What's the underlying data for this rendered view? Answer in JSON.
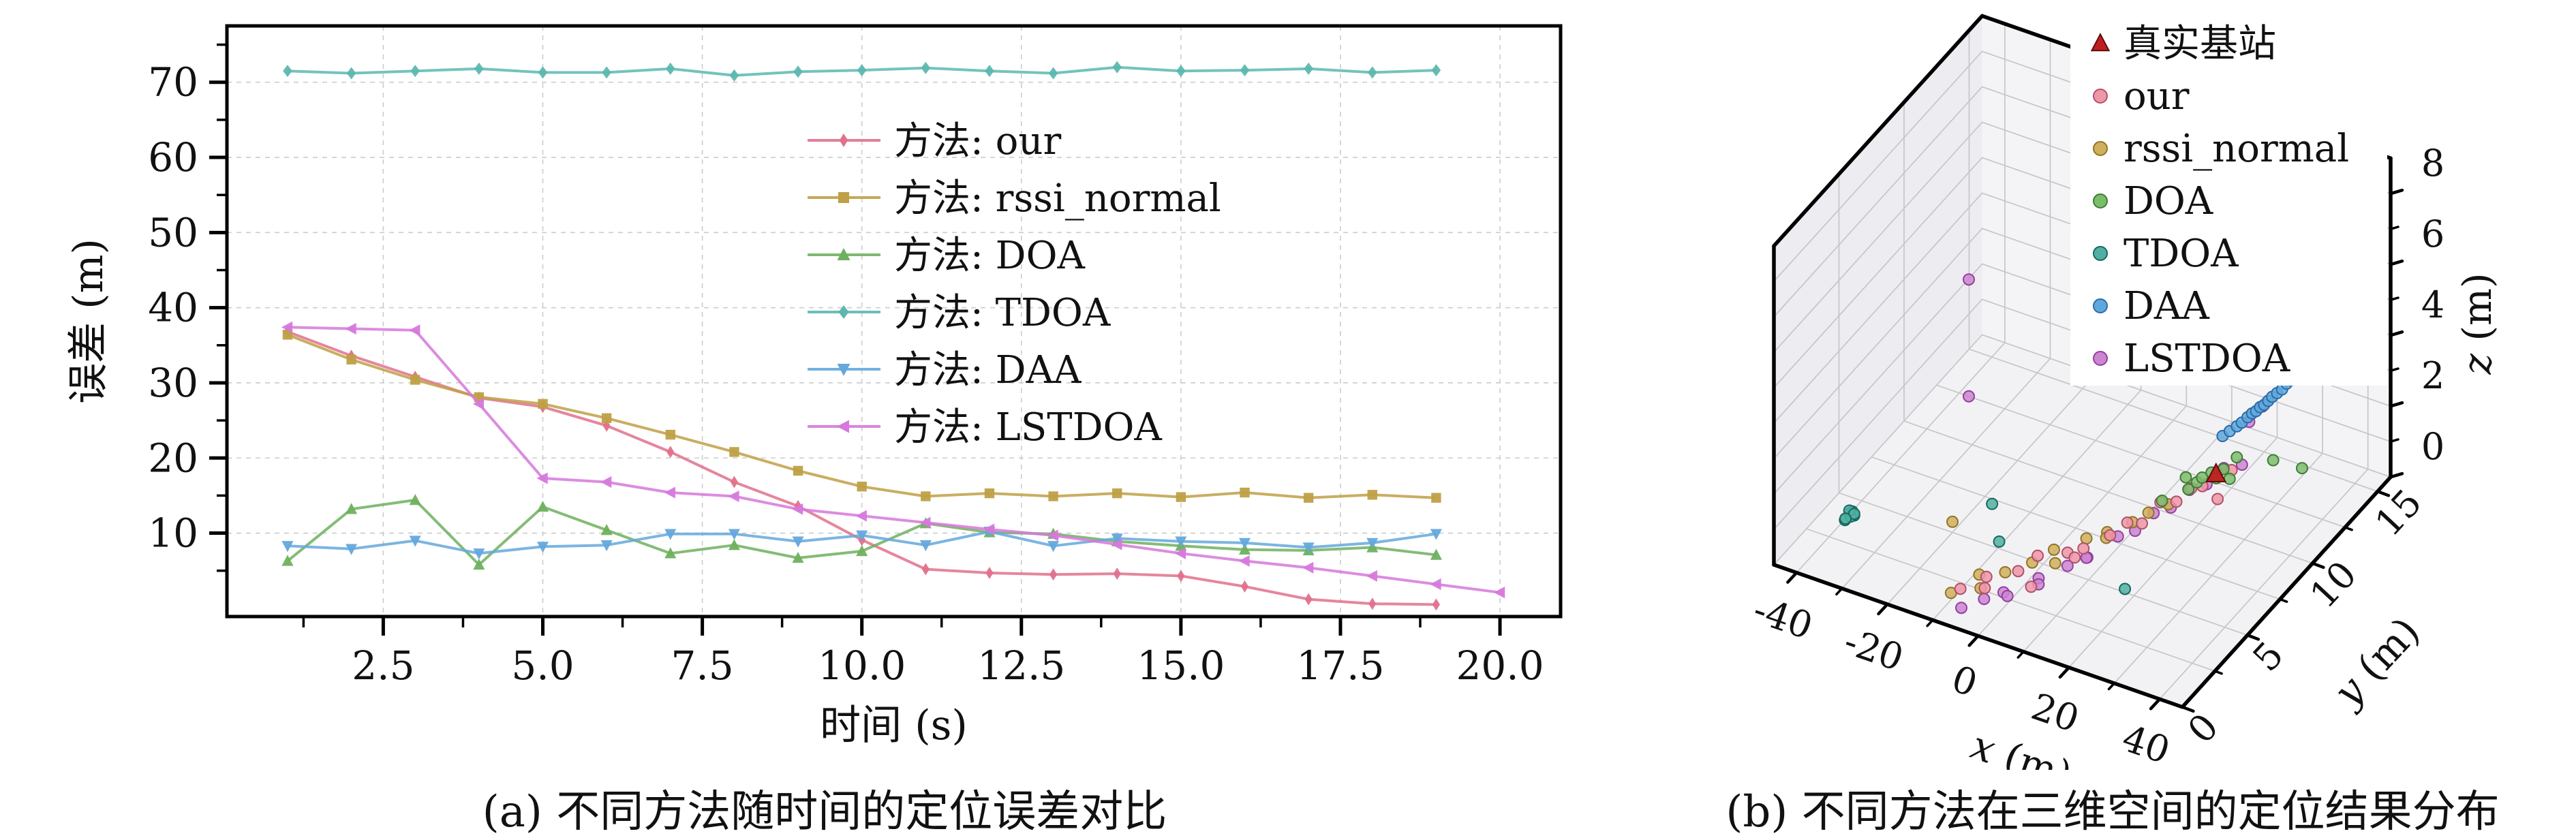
{
  "figure": {
    "background": "#ffffff",
    "caption_a": "(a) 不同方法随时间的定位误差对比",
    "caption_b": "(b) 不同方法在三维空间的定位结果分布"
  },
  "colors": {
    "our": "#e0718c",
    "rssi_normal": "#bfa046",
    "DOA": "#6fb05e",
    "TDOA": "#5cb8ae",
    "DAA": "#64a8dc",
    "LSTDOA": "#d678dc",
    "true_station": "#b32420",
    "grid": "#cccccc",
    "spine": "#000000"
  },
  "chart_data": [
    {
      "type": "line",
      "title": "",
      "xlabel": "时间 (s)",
      "ylabel": "误差 (m)",
      "xlim": [
        0.05,
        20.95
      ],
      "ylim": [
        -1.1,
        77.5
      ],
      "xticks": [
        2.5,
        5.0,
        7.5,
        10.0,
        12.5,
        15.0,
        17.5,
        20.0
      ],
      "yticks": [
        10,
        20,
        30,
        40,
        50,
        60,
        70
      ],
      "xtick_minor_step": 1.25,
      "ytick_minor_step": 5,
      "grid": true,
      "legend_position": "inside upper middle, no frame",
      "series": [
        {
          "name": "方法: our",
          "color": "#e0718c",
          "marker": "thin-diamond",
          "x": [
            1,
            2,
            3,
            4,
            5,
            6,
            7,
            8,
            9,
            10,
            11,
            12,
            13,
            14,
            15,
            16,
            17,
            18,
            19
          ],
          "values": [
            36.8,
            33.6,
            30.8,
            28.0,
            26.8,
            24.3,
            20.8,
            16.8,
            13.6,
            9.1,
            5.2,
            4.7,
            4.5,
            4.6,
            4.3,
            2.9,
            1.2,
            0.6,
            0.5
          ]
        },
        {
          "name": "方法: rssi_normal",
          "color": "#bfa046",
          "marker": "square",
          "x": [
            1,
            2,
            3,
            4,
            5,
            6,
            7,
            8,
            9,
            10,
            11,
            12,
            13,
            14,
            15,
            16,
            17,
            18,
            19
          ],
          "values": [
            36.4,
            33.1,
            30.4,
            28.1,
            27.2,
            25.3,
            23.1,
            20.8,
            18.3,
            16.2,
            14.9,
            15.3,
            14.9,
            15.3,
            14.8,
            15.4,
            14.7,
            15.1,
            14.7
          ]
        },
        {
          "name": "方法: DOA",
          "color": "#6fb05e",
          "marker": "triangle-up",
          "x": [
            1,
            2,
            3,
            4,
            5,
            6,
            7,
            8,
            9,
            10,
            11,
            12,
            13,
            14,
            15,
            16,
            17,
            18,
            19
          ],
          "values": [
            6.3,
            13.2,
            14.4,
            5.8,
            13.5,
            10.4,
            7.3,
            8.4,
            6.7,
            7.6,
            11.3,
            10.1,
            9.9,
            8.9,
            8.3,
            7.8,
            7.7,
            8.1,
            7.1
          ]
        },
        {
          "name": "方法: TDOA",
          "color": "#5cb8ae",
          "marker": "diamond",
          "x": [
            1,
            2,
            3,
            4,
            5,
            6,
            7,
            8,
            9,
            10,
            11,
            12,
            13,
            14,
            15,
            16,
            17,
            18,
            19
          ],
          "values": [
            71.5,
            71.2,
            71.5,
            71.8,
            71.3,
            71.3,
            71.8,
            70.9,
            71.4,
            71.6,
            71.9,
            71.5,
            71.2,
            72.0,
            71.5,
            71.6,
            71.8,
            71.3,
            71.6
          ]
        },
        {
          "name": "方法: DAA",
          "color": "#64a8dc",
          "marker": "triangle-down",
          "x": [
            1,
            2,
            3,
            4,
            5,
            6,
            7,
            8,
            9,
            10,
            11,
            12,
            13,
            14,
            15,
            16,
            17,
            18,
            19
          ],
          "values": [
            8.3,
            7.9,
            9.0,
            7.3,
            8.2,
            8.4,
            9.9,
            9.9,
            8.9,
            9.7,
            8.4,
            10.2,
            8.3,
            9.3,
            8.9,
            8.7,
            8.1,
            8.7,
            9.9
          ]
        },
        {
          "name": "方法: LSTDOA",
          "color": "#d678dc",
          "marker": "triangle-left",
          "x": [
            1,
            2,
            3,
            4,
            5,
            6,
            7,
            8,
            9,
            10,
            11,
            12,
            13,
            14,
            15,
            16,
            17,
            18,
            19,
            20
          ],
          "values": [
            37.4,
            37.2,
            37.0,
            27.2,
            17.3,
            16.8,
            15.4,
            14.9,
            13.2,
            12.3,
            11.4,
            10.5,
            9.7,
            8.5,
            7.3,
            6.3,
            5.4,
            4.3,
            3.2,
            2.1
          ]
        }
      ]
    },
    {
      "type": "scatter",
      "projection": "3d",
      "title": "",
      "xlabel": "x (m)",
      "ylabel": "y (m)",
      "zlabel": "z (m)",
      "xticks": [
        -40,
        -20,
        0,
        20,
        40
      ],
      "yticks": [
        0,
        5,
        10,
        15
      ],
      "zticks": [
        0,
        2,
        4,
        6,
        8
      ],
      "pane_range": {
        "x": [
          -45,
          45
        ],
        "y": [
          0,
          16
        ],
        "z": [
          0,
          9
        ]
      },
      "grid_steps": {
        "x": 10,
        "y": 2.5,
        "z": 1
      },
      "legend_position": "upper center, white box",
      "series": [
        {
          "name": "真实基站",
          "marker": "triangle",
          "fill": "#c01f1f",
          "edge": "#5f0d0d",
          "points": [
            [
              18,
              12,
              0.5
            ]
          ]
        },
        {
          "name": "our",
          "marker": "circle",
          "fill": "#ee97a8",
          "edge": "#b2506a",
          "points": [
            [
              -8.5,
              1.6,
              0.3
            ],
            [
              -6.5,
              2.9,
              0.2
            ],
            [
              -4,
              1.9,
              0.4
            ],
            [
              -1.5,
              3.6,
              0.3
            ],
            [
              0.5,
              4.4,
              0.5
            ],
            [
              2.5,
              3.2,
              0.2
            ],
            [
              4.5,
              5.3,
              0.4
            ],
            [
              6,
              6.0,
              0.3
            ],
            [
              7.5,
              4.8,
              0.6
            ],
            [
              9,
              7.0,
              0.4
            ],
            [
              10.5,
              7.8,
              0.5
            ],
            [
              12,
              8.4,
              0.3
            ],
            [
              13.5,
              9.3,
              0.6
            ],
            [
              15,
              10.0,
              0.4
            ],
            [
              16,
              10.8,
              0.5
            ],
            [
              17,
              11.3,
              0.4
            ],
            [
              18.5,
              11.9,
              0.6
            ],
            [
              20,
              12.5,
              0.5
            ],
            [
              21.5,
              10.9,
              0.4
            ]
          ]
        },
        {
          "name": "rssi_normal",
          "marker": "circle",
          "fill": "#d1af5c",
          "edge": "#8f7627",
          "points": [
            [
              -20,
              5,
              0.3
            ],
            [
              -10,
              1.4,
              0.2
            ],
            [
              -7.5,
              2.7,
              0.3
            ],
            [
              -5.5,
              2.1,
              0.25
            ],
            [
              -3.5,
              3.3,
              0.3
            ],
            [
              -1,
              4.5,
              0.2
            ],
            [
              1.5,
              5.3,
              0.35
            ],
            [
              3.5,
              4.7,
              0.3
            ],
            [
              5.5,
              6.4,
              0.4
            ],
            [
              7.5,
              7.3,
              0.3
            ],
            [
              9,
              6.7,
              0.45
            ],
            [
              10.5,
              8.2,
              0.35
            ],
            [
              12,
              8.9,
              0.4
            ],
            [
              13.5,
              9.9,
              0.3
            ]
          ]
        },
        {
          "name": "DOA",
          "marker": "circle",
          "fill": "#7cbd6b",
          "edge": "#3f7d33",
          "points": [
            [
              13,
              9.6,
              0.5
            ],
            [
              14.5,
              10.9,
              0.7
            ],
            [
              15.5,
              11.4,
              0.4
            ],
            [
              16.2,
              10.5,
              0.6
            ],
            [
              17,
              12.0,
              0.5
            ],
            [
              17.8,
              11.0,
              0.8
            ],
            [
              18.5,
              12.4,
              0.5
            ],
            [
              19.2,
              11.6,
              0.6
            ],
            [
              20,
              12.9,
              0.7
            ],
            [
              21,
              12.0,
              0.5
            ],
            [
              26,
              13.6,
              0.6
            ],
            [
              31.5,
              13.9,
              0.5
            ]
          ]
        },
        {
          "name": "TDOA",
          "marker": "circle",
          "fill": "#51b0a2",
          "edge": "#17695e",
          "points": [
            [
              -34.5,
              1.8,
              1.0
            ],
            [
              -34,
              2.2,
              1.1
            ],
            [
              -33.6,
              1.9,
              1.2
            ],
            [
              -34.2,
              2.4,
              0.9
            ],
            [
              -33.8,
              2.0,
              1.05
            ],
            [
              -34.4,
              2.1,
              1.15
            ],
            [
              -33.9,
              2.3,
              1.0
            ],
            [
              -34.1,
              1.7,
              1.1
            ],
            [
              -15,
              6.3,
              0.5
            ],
            [
              -9.7,
              5,
              0.2
            ],
            [
              18,
              5,
              0.1
            ]
          ]
        },
        {
          "name": "DAA",
          "marker": "circle",
          "fill": "#5fa8dd",
          "edge": "#2b6ca8",
          "points": [
            [
              16,
              13.2,
              1.0
            ],
            [
              17,
              13.4,
              1.1
            ],
            [
              18,
              13.6,
              1.2
            ],
            [
              18.8,
              13.7,
              1.3
            ],
            [
              19.5,
              13.9,
              1.4
            ],
            [
              20.2,
              14.0,
              1.5
            ],
            [
              20.8,
              14.1,
              1.55
            ],
            [
              21.4,
              14.2,
              1.65
            ],
            [
              22,
              14.3,
              1.7
            ],
            [
              22.6,
              14.4,
              1.8
            ],
            [
              23.2,
              14.5,
              1.9
            ],
            [
              24,
              14.6,
              2.0
            ],
            [
              24.8,
              14.7,
              2.1
            ],
            [
              25.5,
              14.8,
              2.25
            ],
            [
              26.5,
              14.9,
              2.4
            ],
            [
              27,
              14.6,
              2.5
            ],
            [
              27.5,
              15.0,
              2.6
            ],
            [
              28.5,
              15.1,
              2.8
            ],
            [
              29.5,
              15.2,
              3.0
            ],
            [
              30.5,
              15.3,
              3.3
            ]
          ]
        },
        {
          "name": "LSTDOA",
          "marker": "circle",
          "fill": "#cc85d0",
          "edge": "#9440a0",
          "points": [
            [
              -6,
              0.8,
              0.2
            ],
            [
              -3,
              1.5,
              0.3
            ],
            [
              -1,
              2.3,
              0.25
            ],
            [
              1,
              1.9,
              0.4
            ],
            [
              3,
              3.6,
              0.3
            ],
            [
              5,
              2.9,
              0.5
            ],
            [
              6.5,
              4.6,
              0.4
            ],
            [
              8,
              5.6,
              0.3
            ],
            [
              9.5,
              5.0,
              0.6
            ],
            [
              11,
              6.9,
              0.5
            ],
            [
              12.5,
              7.7,
              0.4
            ],
            [
              14,
              8.6,
              0.6
            ],
            [
              15.5,
              9.4,
              0.5
            ],
            [
              17,
              10.3,
              0.7
            ],
            [
              18.5,
              11.1,
              0.6
            ],
            [
              20,
              11.9,
              0.8
            ],
            [
              22,
              12.6,
              0.7
            ],
            [
              21,
              13.5,
              1.5
            ],
            [
              22.5,
              14.0,
              1.8
            ],
            [
              -25,
              8,
              5.7
            ],
            [
              -25,
              8,
              2.4
            ]
          ]
        }
      ]
    }
  ]
}
